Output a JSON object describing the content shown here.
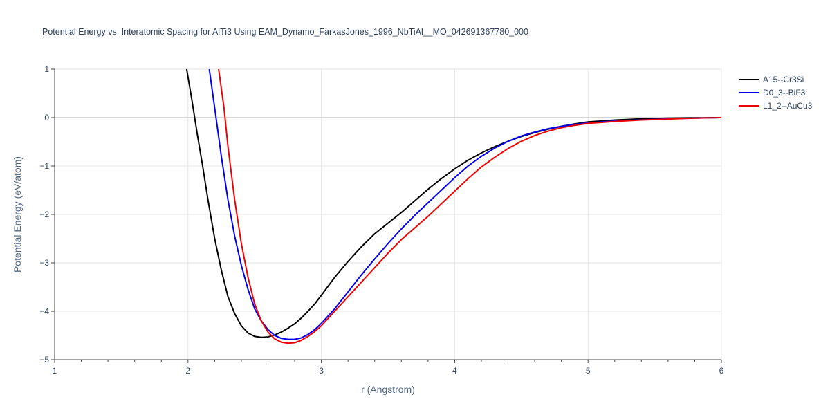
{
  "chart_data": {
    "type": "line",
    "title": "Potential Energy vs. Interatomic Spacing for AlTi3 Using EAM_Dynamo_FarkasJones_1996_NbTiAl__MO_042691367780_000",
    "xlabel": "r (Angstrom)",
    "ylabel": "Potential Energy (eV/atom)",
    "xlim": [
      1,
      6
    ],
    "ylim": [
      -5,
      1
    ],
    "xticks": [
      1,
      2,
      3,
      4,
      5,
      6
    ],
    "yticks": [
      1,
      0,
      -1,
      -2,
      -3,
      -4,
      -5
    ],
    "ytick_labels": [
      "1",
      "0",
      "−1",
      "−2",
      "−3",
      "−4",
      "−5"
    ],
    "legend_position": "top-right",
    "grid": true,
    "series": [
      {
        "name": "A15--Cr3Si",
        "color": "#000000",
        "x": [
          1.99,
          2.03,
          2.07,
          2.11,
          2.15,
          2.2,
          2.25,
          2.3,
          2.35,
          2.4,
          2.45,
          2.5,
          2.55,
          2.6,
          2.65,
          2.7,
          2.75,
          2.8,
          2.85,
          2.9,
          2.95,
          3.0,
          3.1,
          3.2,
          3.3,
          3.4,
          3.5,
          3.6,
          3.7,
          3.8,
          3.9,
          4.0,
          4.1,
          4.2,
          4.3,
          4.4,
          4.5,
          4.6,
          4.7,
          4.8,
          4.9,
          5.0,
          5.2,
          5.4,
          5.6,
          5.8,
          6.0
        ],
        "y": [
          1.0,
          0.35,
          -0.35,
          -1.0,
          -1.7,
          -2.5,
          -3.15,
          -3.7,
          -4.05,
          -4.3,
          -4.45,
          -4.52,
          -4.54,
          -4.53,
          -4.49,
          -4.43,
          -4.35,
          -4.26,
          -4.14,
          -4.0,
          -3.85,
          -3.67,
          -3.3,
          -2.97,
          -2.67,
          -2.4,
          -2.18,
          -1.96,
          -1.72,
          -1.48,
          -1.26,
          -1.06,
          -0.88,
          -0.73,
          -0.6,
          -0.49,
          -0.39,
          -0.31,
          -0.24,
          -0.18,
          -0.13,
          -0.09,
          -0.05,
          -0.025,
          -0.012,
          -0.005,
          0.0
        ]
      },
      {
        "name": "D0_3--BiF3",
        "color": "#0000ee",
        "x": [
          2.16,
          2.2,
          2.25,
          2.3,
          2.35,
          2.4,
          2.45,
          2.5,
          2.55,
          2.6,
          2.65,
          2.7,
          2.75,
          2.8,
          2.85,
          2.9,
          2.95,
          3.0,
          3.1,
          3.2,
          3.3,
          3.4,
          3.5,
          3.6,
          3.7,
          3.8,
          3.9,
          4.0,
          4.1,
          4.2,
          4.3,
          4.4,
          4.5,
          4.6,
          4.7,
          4.8,
          4.9,
          5.0,
          5.2,
          5.4,
          5.6,
          5.8,
          6.0
        ],
        "y": [
          1.0,
          0.2,
          -0.8,
          -1.7,
          -2.45,
          -3.05,
          -3.55,
          -3.95,
          -4.2,
          -4.38,
          -4.5,
          -4.56,
          -4.58,
          -4.58,
          -4.55,
          -4.48,
          -4.38,
          -4.25,
          -3.95,
          -3.6,
          -3.25,
          -2.92,
          -2.6,
          -2.3,
          -2.02,
          -1.76,
          -1.5,
          -1.24,
          -1.0,
          -0.8,
          -0.63,
          -0.49,
          -0.38,
          -0.3,
          -0.23,
          -0.18,
          -0.14,
          -0.11,
          -0.07,
          -0.045,
          -0.025,
          -0.01,
          0.0
        ]
      },
      {
        "name": "L1_2--AuCu3",
        "color": "#ee0000",
        "x": [
          2.23,
          2.27,
          2.3,
          2.35,
          2.4,
          2.45,
          2.5,
          2.55,
          2.6,
          2.65,
          2.7,
          2.75,
          2.8,
          2.85,
          2.9,
          2.95,
          3.0,
          3.05,
          3.1,
          3.2,
          3.3,
          3.4,
          3.5,
          3.6,
          3.7,
          3.8,
          3.9,
          4.0,
          4.1,
          4.2,
          4.3,
          4.4,
          4.5,
          4.6,
          4.7,
          4.8,
          4.9,
          5.0,
          5.2,
          5.4,
          5.6,
          5.8,
          6.0
        ],
        "y": [
          1.0,
          0.2,
          -0.6,
          -1.7,
          -2.6,
          -3.3,
          -3.85,
          -4.2,
          -4.43,
          -4.57,
          -4.64,
          -4.66,
          -4.65,
          -4.6,
          -4.52,
          -4.42,
          -4.3,
          -4.15,
          -4.0,
          -3.7,
          -3.4,
          -3.1,
          -2.8,
          -2.52,
          -2.28,
          -2.04,
          -1.78,
          -1.52,
          -1.26,
          -1.02,
          -0.82,
          -0.64,
          -0.49,
          -0.37,
          -0.28,
          -0.21,
          -0.16,
          -0.12,
          -0.08,
          -0.05,
          -0.03,
          -0.012,
          0.0
        ]
      }
    ]
  }
}
